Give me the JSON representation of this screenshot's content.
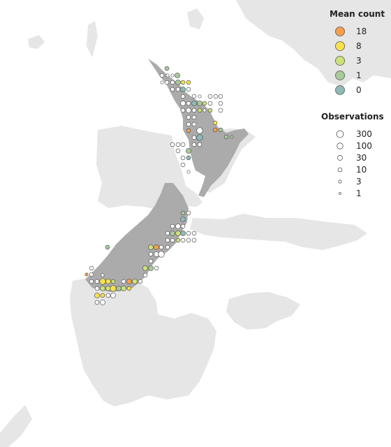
{
  "legend_mean": {
    "title": "Mean count",
    "items": [
      {
        "label": "18",
        "color": "#f6a04d"
      },
      {
        "label": "8",
        "color": "#f7e24e"
      },
      {
        "label": "3",
        "color": "#cde27a"
      },
      {
        "label": "1",
        "color": "#a9c99a"
      },
      {
        "label": "0",
        "color": "#8fbab6"
      }
    ]
  },
  "legend_obs": {
    "title": "Observations",
    "items": [
      {
        "label": "300",
        "value": 300
      },
      {
        "label": "100",
        "value": 100
      },
      {
        "label": "30",
        "value": 30
      },
      {
        "label": "10",
        "value": 10
      },
      {
        "label": "3",
        "value": 3
      },
      {
        "label": "1",
        "value": 1
      }
    ]
  },
  "colors": {
    "land_context": "#e6e6e6",
    "land_focus": "#ababab",
    "empty_marker_stroke": "#555555",
    "empty_marker_fill": "#ffffff"
  }
}
